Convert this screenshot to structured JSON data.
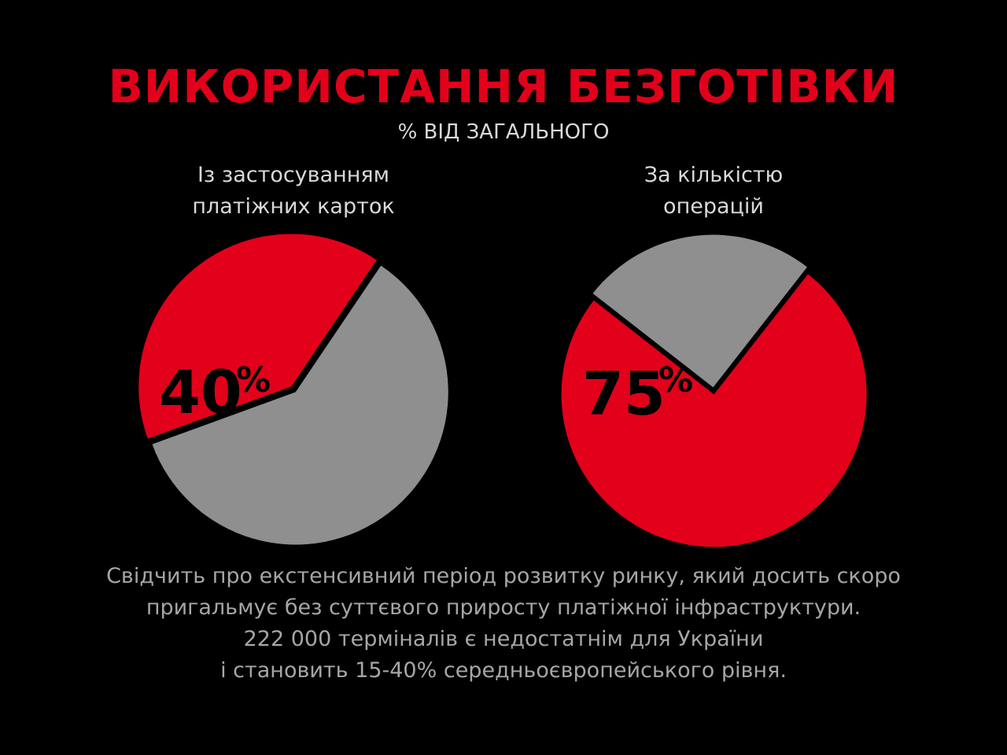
{
  "title": "ВИКОРИСТАННЯ БЕЗГОТІВКИ",
  "subtitle": "% ВІД ЗАГАЛЬНОГО",
  "colors": {
    "background": "#000000",
    "accent": "#e2001a",
    "rest": "#8f8f8f",
    "text_light": "#d9d9d9",
    "text_gray": "#a6a6a6",
    "percent_text": "#000000"
  },
  "chart_data": [
    {
      "type": "pie",
      "label_lines": [
        "Із застосуванням",
        "платіжних карток"
      ],
      "value": 40,
      "value_label": "40",
      "unit_label": "%",
      "slices": [
        {
          "value": 40,
          "color": "#e2001a"
        },
        {
          "value": 60,
          "color": "#8f8f8f"
        }
      ]
    },
    {
      "type": "pie",
      "label_lines": [
        "За кількістю",
        "операцій"
      ],
      "value": 75,
      "value_label": "75",
      "unit_label": "%",
      "slices": [
        {
          "value": 75,
          "color": "#e2001a"
        },
        {
          "value": 25,
          "color": "#8f8f8f"
        }
      ]
    }
  ],
  "footnote_lines": [
    "Свідчить про екстенсивний період розвитку ринку, який досить скоро",
    "пригальмує без суттєвого приросту платіжної інфраструктури.",
    "222 000 терміналів є недостатнім для України",
    "і становить 15-40% середньоєвропейського рівня."
  ]
}
